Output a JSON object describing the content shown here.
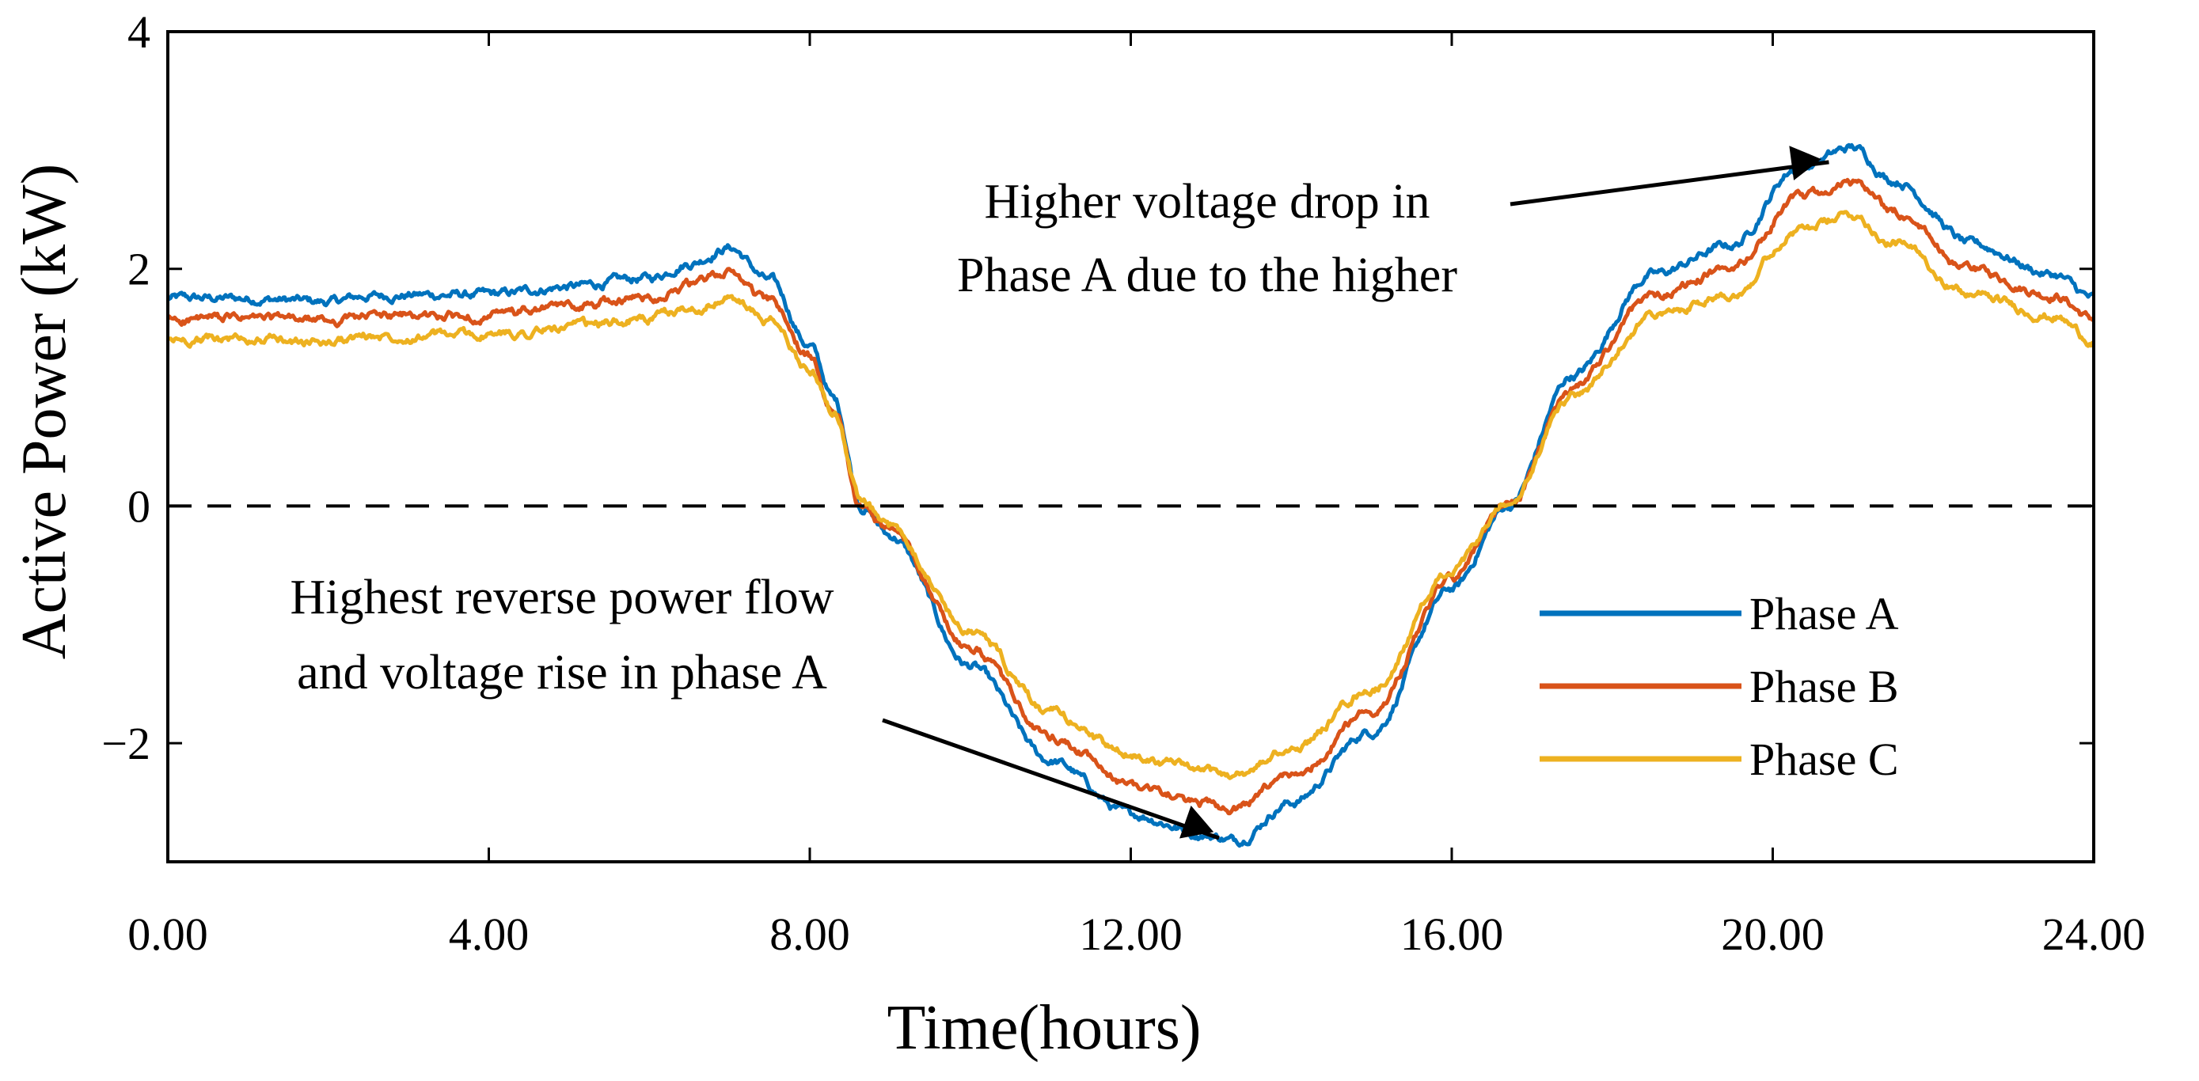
{
  "chart_data": {
    "type": "line",
    "title": "",
    "xlabel": "Time(hours)",
    "ylabel": "Active Power (kW)",
    "xlim": [
      0,
      24
    ],
    "ylim": [
      -3,
      4
    ],
    "x_ticks": [
      0,
      4,
      8,
      12,
      16,
      20,
      24
    ],
    "x_tick_labels": [
      "0.00",
      "4.00",
      "8.00",
      "12.00",
      "16.00",
      "20.00",
      "24.00"
    ],
    "y_ticks": [
      -2,
      0,
      2,
      4
    ],
    "y_tick_labels": [
      "−2",
      "0",
      "2",
      "4"
    ],
    "grid": false,
    "legend_position": "right-middle",
    "reference_line": {
      "y": 0,
      "style": "dashed",
      "color": "#000000"
    },
    "x": [
      0,
      1,
      2,
      2.5,
      3,
      4,
      5,
      6,
      6.5,
      7,
      7.5,
      8,
      8.3,
      8.65,
      9,
      10,
      11,
      12,
      13,
      13.3,
      14,
      15,
      16,
      16.7,
      17.5,
      18.5,
      19.5,
      20.3,
      21,
      21.5,
      22.5,
      23.5,
      24
    ],
    "series": [
      {
        "name": "Phase A",
        "color": "#0072BD",
        "values": [
          1.75,
          1.75,
          1.72,
          1.77,
          1.78,
          1.78,
          1.85,
          1.92,
          2.05,
          2.18,
          1.9,
          1.35,
          0.9,
          0.0,
          -0.25,
          -1.35,
          -2.15,
          -2.6,
          -2.78,
          -2.82,
          -2.5,
          -1.9,
          -0.7,
          0.0,
          1.1,
          1.95,
          2.2,
          2.85,
          3.02,
          2.75,
          2.2,
          1.95,
          1.75
        ]
      },
      {
        "name": "Phase B",
        "color": "#D95319",
        "values": [
          1.57,
          1.58,
          1.56,
          1.6,
          1.6,
          1.6,
          1.68,
          1.76,
          1.86,
          1.97,
          1.72,
          1.25,
          0.85,
          0.0,
          -0.2,
          -1.2,
          -1.95,
          -2.35,
          -2.52,
          -2.55,
          -2.28,
          -1.72,
          -0.62,
          0.0,
          1.0,
          1.78,
          2.0,
          2.58,
          2.72,
          2.48,
          1.98,
          1.78,
          1.58
        ]
      },
      {
        "name": "Phase C",
        "color": "#EDB120",
        "values": [
          1.4,
          1.41,
          1.38,
          1.43,
          1.44,
          1.44,
          1.5,
          1.58,
          1.66,
          1.75,
          1.55,
          1.15,
          0.8,
          0.0,
          -0.18,
          -1.05,
          -1.75,
          -2.1,
          -2.25,
          -2.27,
          -2.05,
          -1.55,
          -0.55,
          0.0,
          0.92,
          1.6,
          1.8,
          2.32,
          2.45,
          2.22,
          1.78,
          1.6,
          1.4
        ]
      }
    ],
    "annotations": [
      {
        "lines": [
          "Higher voltage drop in",
          "Phase A due to the higher"
        ],
        "arrow_target": {
          "x": 20.7,
          "y": 2.9
        }
      },
      {
        "lines": [
          "Highest reverse power flow",
          "and voltage rise in phase A"
        ],
        "arrow_target": {
          "x": 13.1,
          "y": -2.8
        }
      }
    ]
  }
}
